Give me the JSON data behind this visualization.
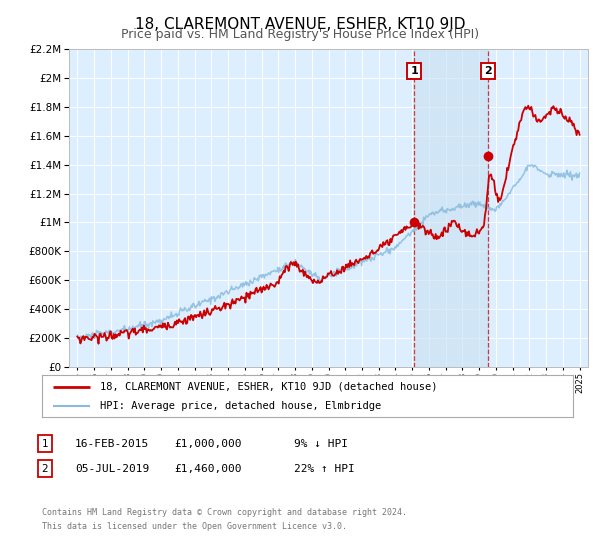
{
  "title": "18, CLAREMONT AVENUE, ESHER, KT10 9JD",
  "subtitle": "Price paid vs. HM Land Registry's House Price Index (HPI)",
  "title_fontsize": 11,
  "subtitle_fontsize": 9,
  "legend_line1": "18, CLAREMONT AVENUE, ESHER, KT10 9JD (detached house)",
  "legend_line2": "HPI: Average price, detached house, Elmbridge",
  "sale1_label": "1",
  "sale1_date": "16-FEB-2015",
  "sale1_price": "£1,000,000",
  "sale1_hpi": "9% ↓ HPI",
  "sale2_label": "2",
  "sale2_date": "05-JUL-2019",
  "sale2_price": "£1,460,000",
  "sale2_hpi": "22% ↑ HPI",
  "footnote1": "Contains HM Land Registry data © Crown copyright and database right 2024.",
  "footnote2": "This data is licensed under the Open Government Licence v3.0.",
  "red_color": "#cc0000",
  "blue_color": "#88bbdd",
  "bg_color": "#ddeeff",
  "sale1_year": 2015.12,
  "sale2_year": 2019.51,
  "ylim_min": 0,
  "ylim_max": 2200000,
  "xlim_min": 1994.5,
  "xlim_max": 2025.5
}
